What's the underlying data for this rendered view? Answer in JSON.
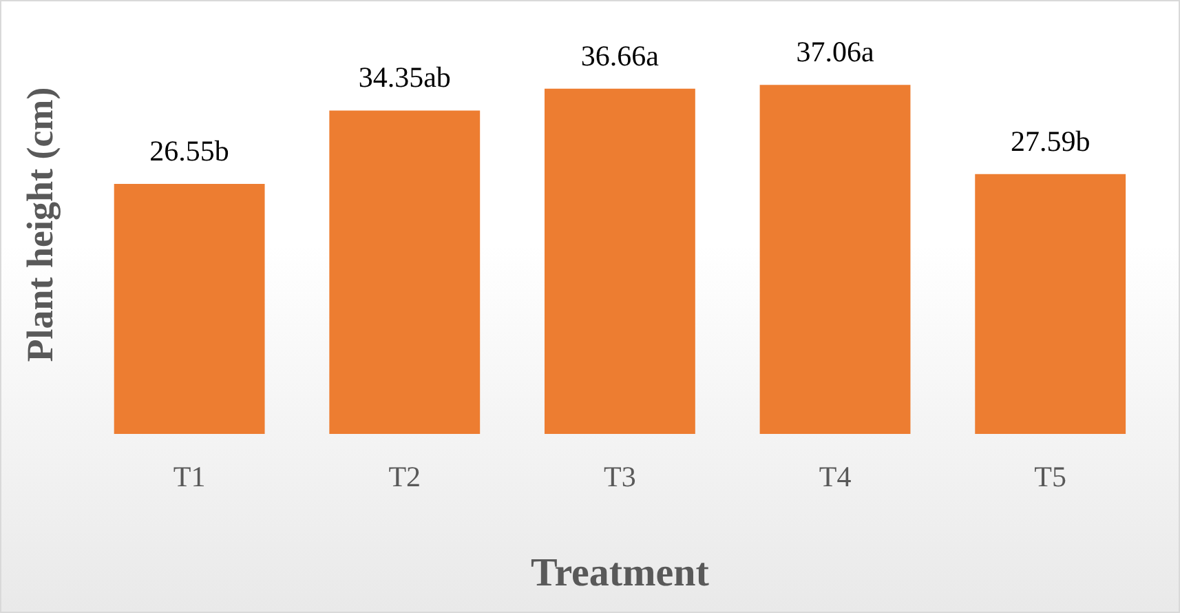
{
  "chart_data": {
    "type": "bar",
    "xlabel": "Treatment",
    "ylabel": "Plant height (cm)",
    "categories": [
      "T1",
      "T2",
      "T3",
      "T4",
      "T5"
    ],
    "values": [
      26.55,
      34.35,
      36.66,
      37.06,
      27.59
    ],
    "value_labels": [
      "26.55b",
      "34.35ab",
      "36.66a",
      "37.06a",
      "27.59b"
    ],
    "color": "#ed7d31",
    "grid": false,
    "legend": false,
    "tick_labels": "x"
  }
}
